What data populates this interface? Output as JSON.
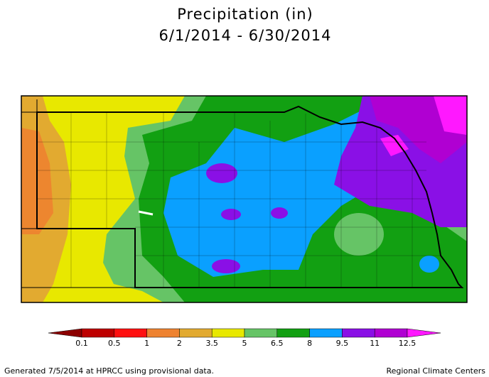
{
  "header": {
    "title": "Precipitation (in)",
    "subtitle": "6/1/2014 - 6/30/2014"
  },
  "legend": {
    "breaks": [
      0.1,
      0.5,
      1,
      2,
      3.5,
      5,
      6.5,
      8,
      9.5,
      11,
      12.5
    ],
    "colors": [
      "#8c0000",
      "#be0000",
      "#ff1010",
      "#ee8230",
      "#e2aa30",
      "#e8e800",
      "#66c466",
      "#12a012",
      "#0aa0ff",
      "#8a10e6",
      "#b000d2",
      "#ff18ff"
    ]
  },
  "footer": {
    "left": "Generated 7/5/2014 at HPRCC using provisional data.",
    "right": "Regional Climate Centers"
  }
}
